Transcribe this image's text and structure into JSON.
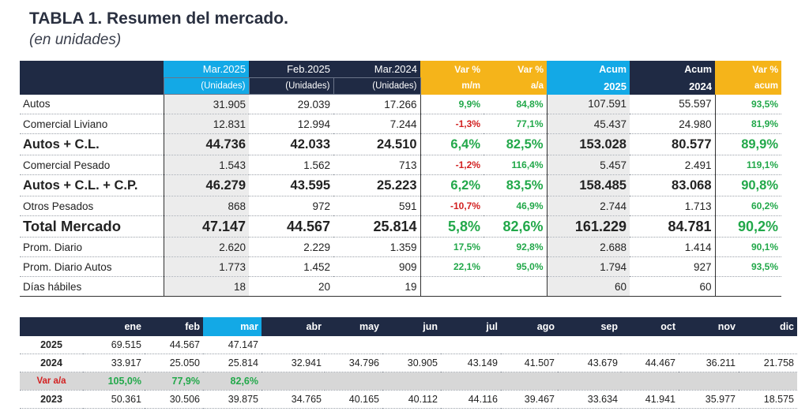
{
  "title": "TABLA 1. Resumen del mercado.",
  "subtitle": "(en unidades)",
  "table1": {
    "headers_top": [
      "",
      "Mar.2025",
      "Feb.2025",
      "Mar.2024",
      "Var %",
      "Var %",
      "Acum",
      "Acum",
      "Var %"
    ],
    "headers_bottom": [
      "",
      "(Unidades)",
      "(Unidades)",
      "(Unidades)",
      "m/m",
      "a/a",
      "2025",
      "2024",
      "acum"
    ],
    "rows": [
      {
        "label": "Autos",
        "style": "normal",
        "cells": [
          "31.905",
          "29.039",
          "17.266",
          "9,9%",
          "84,8%",
          "107.591",
          "55.597",
          "93,5%"
        ]
      },
      {
        "label": "Comercial Liviano",
        "style": "normal",
        "cells": [
          "12.831",
          "12.994",
          "7.244",
          "-1,3%",
          "77,1%",
          "45.437",
          "24.980",
          "81,9%"
        ]
      },
      {
        "label": "Autos + C.L.",
        "style": "bold",
        "cells": [
          "44.736",
          "42.033",
          "24.510",
          "6,4%",
          "82,5%",
          "153.028",
          "80.577",
          "89,9%"
        ]
      },
      {
        "label": "Comercial Pesado",
        "style": "normal",
        "cells": [
          "1.543",
          "1.562",
          "713",
          "-1,2%",
          "116,4%",
          "5.457",
          "2.491",
          "119,1%"
        ]
      },
      {
        "label": "Autos + C.L. + C.P.",
        "style": "bold",
        "cells": [
          "46.279",
          "43.595",
          "25.223",
          "6,2%",
          "83,5%",
          "158.485",
          "83.068",
          "90,8%"
        ]
      },
      {
        "label": "Otros Pesados",
        "style": "normal",
        "cells": [
          "868",
          "972",
          "591",
          "-10,7%",
          "46,9%",
          "2.744",
          "1.713",
          "60,2%"
        ]
      },
      {
        "label": "Total Mercado",
        "style": "big",
        "cells": [
          "47.147",
          "44.567",
          "25.814",
          "5,8%",
          "82,6%",
          "161.229",
          "84.781",
          "90,2%"
        ]
      },
      {
        "label": "Prom. Diario",
        "style": "normal",
        "cells": [
          "2.620",
          "2.229",
          "1.359",
          "17,5%",
          "92,8%",
          "2.688",
          "1.414",
          "90,1%"
        ]
      },
      {
        "label": "Prom. Diario Autos",
        "style": "normal",
        "cells": [
          "1.773",
          "1.452",
          "909",
          "22,1%",
          "95,0%",
          "1.794",
          "927",
          "93,5%"
        ]
      },
      {
        "label": "Días hábiles",
        "style": "normal",
        "cells": [
          "18",
          "20",
          "19",
          "",
          "",
          "60",
          "60",
          ""
        ]
      }
    ]
  },
  "table2": {
    "months": [
      "ene",
      "feb",
      "mar",
      "abr",
      "may",
      "jun",
      "jul",
      "ago",
      "sep",
      "oct",
      "nov",
      "dic"
    ],
    "rows": [
      {
        "label": "2025",
        "type": "year",
        "values": [
          "69.515",
          "44.567",
          "47.147",
          "",
          "",
          "",
          "",
          "",
          "",
          "",
          "",
          ""
        ]
      },
      {
        "label": "2024",
        "type": "year",
        "values": [
          "33.917",
          "25.050",
          "25.814",
          "32.941",
          "34.796",
          "30.905",
          "43.149",
          "41.507",
          "43.679",
          "44.467",
          "36.211",
          "21.758"
        ]
      },
      {
        "label": "Var a/a",
        "type": "var",
        "values": [
          "105,0%",
          "77,9%",
          "82,6%",
          "",
          "",
          "",
          "",
          "",
          "",
          "",
          "",
          ""
        ]
      },
      {
        "label": "2023",
        "type": "year",
        "values": [
          "50.361",
          "30.506",
          "39.875",
          "34.765",
          "40.165",
          "40.112",
          "44.116",
          "39.467",
          "33.634",
          "41.941",
          "35.977",
          "18.575"
        ]
      }
    ]
  },
  "colors": {
    "navy": "#1f2a44",
    "sky": "#13a9e6",
    "gold": "#f5b41a",
    "green": "#22a84a",
    "red": "#d22020"
  }
}
